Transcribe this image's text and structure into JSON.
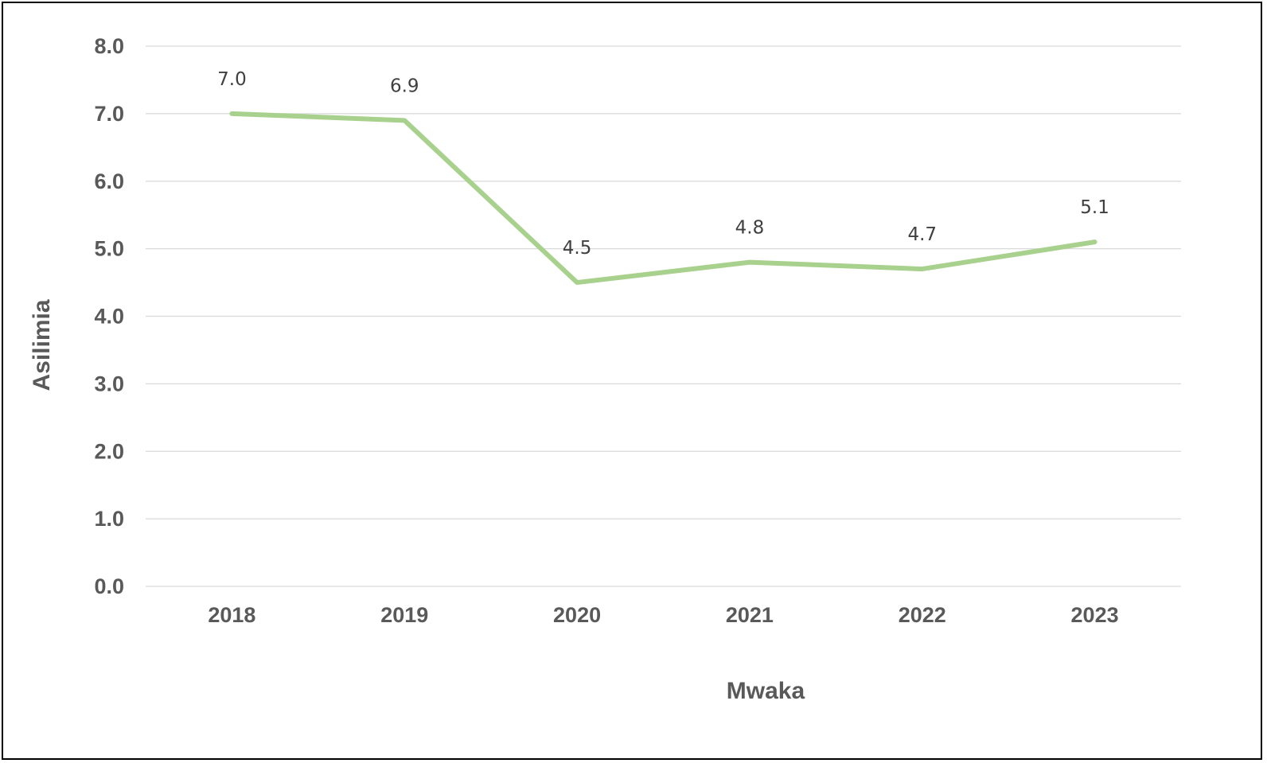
{
  "chart_data": {
    "type": "line",
    "title": "",
    "xlabel": "Mwaka",
    "ylabel": "Asilimia",
    "categories": [
      "2018",
      "2019",
      "2020",
      "2021",
      "2022",
      "2023"
    ],
    "series": [
      {
        "values": [
          7.0,
          6.9,
          4.5,
          4.8,
          4.7,
          5.1
        ],
        "value_labels": [
          "7.0",
          "6.9",
          "4.5",
          "4.8",
          "4.7",
          "5.1"
        ],
        "color": "#a9d18e"
      }
    ],
    "yticks": [
      "0.0",
      "1.0",
      "2.0",
      "3.0",
      "4.0",
      "5.0",
      "6.0",
      "7.0",
      "8.0"
    ],
    "ylim": [
      0,
      8
    ],
    "grid": true,
    "legend": "none",
    "colors": {
      "gridline": "#d9d9d9",
      "tick_text": "#595959",
      "label_text": "#404040",
      "frame": "#000000"
    }
  }
}
